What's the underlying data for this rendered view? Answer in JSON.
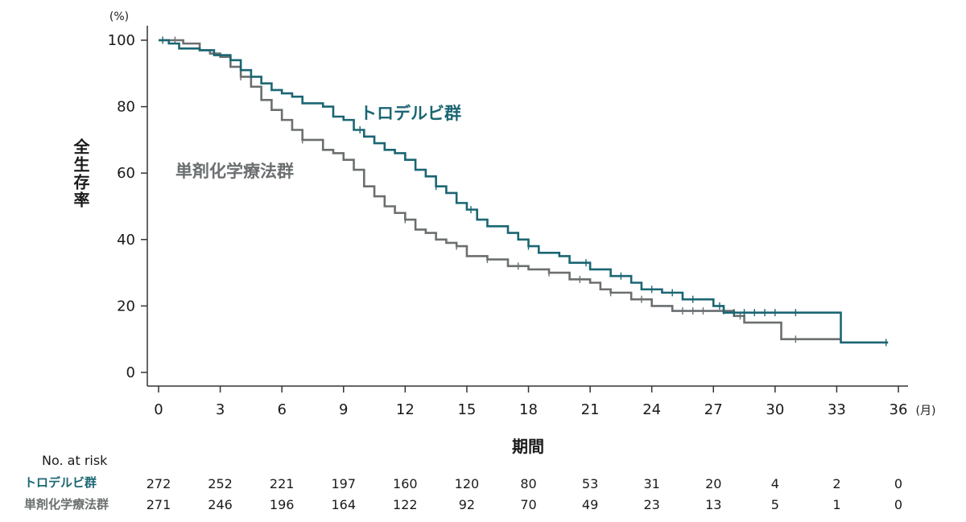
{
  "chart_data": {
    "type": "line",
    "step": true,
    "y_unit": "(%)",
    "x_unit": "(月)",
    "ylabel": "全生存率",
    "xlabel": "期間",
    "xlim": [
      0,
      36
    ],
    "ylim": [
      0,
      100
    ],
    "x_ticks": [
      0,
      3,
      6,
      9,
      12,
      15,
      18,
      21,
      24,
      27,
      30,
      33,
      36
    ],
    "y_ticks": [
      0,
      20,
      40,
      60,
      80,
      100
    ],
    "series": [
      {
        "name": "トロデルビ群",
        "color": "#1b6673",
        "points": [
          [
            0,
            100
          ],
          [
            0.5,
            99
          ],
          [
            1,
            97.5
          ],
          [
            2,
            97
          ],
          [
            2.7,
            95.5
          ],
          [
            3.5,
            94
          ],
          [
            4,
            91
          ],
          [
            4.5,
            89
          ],
          [
            5,
            87
          ],
          [
            5.5,
            85
          ],
          [
            6,
            84
          ],
          [
            6.5,
            83
          ],
          [
            7,
            81
          ],
          [
            8,
            80
          ],
          [
            8.5,
            77
          ],
          [
            9,
            76
          ],
          [
            9.5,
            73
          ],
          [
            10,
            71
          ],
          [
            10.5,
            69
          ],
          [
            11,
            67
          ],
          [
            11.5,
            66
          ],
          [
            12,
            64
          ],
          [
            12.5,
            61
          ],
          [
            13,
            59
          ],
          [
            13.5,
            56
          ],
          [
            14,
            54
          ],
          [
            14.5,
            51
          ],
          [
            15,
            49
          ],
          [
            15.5,
            46
          ],
          [
            16,
            44
          ],
          [
            17,
            42
          ],
          [
            17.5,
            40
          ],
          [
            18,
            38
          ],
          [
            18.5,
            36
          ],
          [
            19.5,
            35
          ],
          [
            20,
            33
          ],
          [
            21,
            31
          ],
          [
            22,
            29
          ],
          [
            23,
            27
          ],
          [
            23.5,
            25
          ],
          [
            24.5,
            24
          ],
          [
            25.5,
            22
          ],
          [
            27,
            20
          ],
          [
            27.5,
            18
          ],
          [
            33.2,
            18
          ],
          [
            33.2,
            9
          ],
          [
            35.5,
            9
          ]
        ],
        "censor_x": [
          0.2,
          9.8,
          13.5,
          15.2,
          18,
          20.8,
          22.5,
          24,
          25,
          26,
          27.3,
          28,
          28.5,
          29,
          29.5,
          30,
          31,
          35.4
        ]
      },
      {
        "name": "単剤化学療法群",
        "color": "#6b6f70",
        "points": [
          [
            0,
            100
          ],
          [
            0.6,
            100
          ],
          [
            1.2,
            99
          ],
          [
            2,
            97
          ],
          [
            2.5,
            96
          ],
          [
            3,
            95
          ],
          [
            3.5,
            92
          ],
          [
            4,
            89
          ],
          [
            4.5,
            86
          ],
          [
            5,
            82
          ],
          [
            5.5,
            79
          ],
          [
            6,
            76
          ],
          [
            6.5,
            73
          ],
          [
            7,
            70
          ],
          [
            8,
            67
          ],
          [
            8.5,
            66
          ],
          [
            9,
            64
          ],
          [
            9.5,
            61
          ],
          [
            10,
            56
          ],
          [
            10.5,
            53
          ],
          [
            11,
            50
          ],
          [
            11.5,
            48
          ],
          [
            12,
            46
          ],
          [
            12.5,
            43
          ],
          [
            13,
            42
          ],
          [
            13.5,
            40
          ],
          [
            14,
            39
          ],
          [
            14.5,
            38
          ],
          [
            15,
            35
          ],
          [
            16,
            34
          ],
          [
            17,
            32
          ],
          [
            18,
            31
          ],
          [
            19,
            30
          ],
          [
            20,
            28
          ],
          [
            21,
            27
          ],
          [
            21.5,
            25
          ],
          [
            22,
            24
          ],
          [
            23,
            22
          ],
          [
            24,
            20
          ],
          [
            25,
            18.5
          ],
          [
            27,
            18.5
          ],
          [
            28,
            17
          ],
          [
            28.5,
            15
          ],
          [
            29,
            15
          ],
          [
            30.3,
            15
          ],
          [
            30.3,
            10
          ],
          [
            33.2,
            10
          ]
        ],
        "censor_x": [
          0.8,
          4,
          7,
          12,
          14.5,
          16,
          17.5,
          19,
          20.5,
          22,
          23.5,
          25.5,
          26,
          26.5,
          27.5,
          28.3,
          31
        ]
      }
    ],
    "risk_table": {
      "title": "No. at risk",
      "rows": [
        {
          "name": "トロデルビ群",
          "values": [
            272,
            252,
            221,
            197,
            160,
            120,
            80,
            53,
            31,
            20,
            4,
            2,
            0
          ]
        },
        {
          "name": "単剤化学療法群",
          "values": [
            271,
            246,
            196,
            164,
            122,
            92,
            70,
            49,
            23,
            13,
            5,
            1,
            0
          ]
        }
      ]
    }
  }
}
